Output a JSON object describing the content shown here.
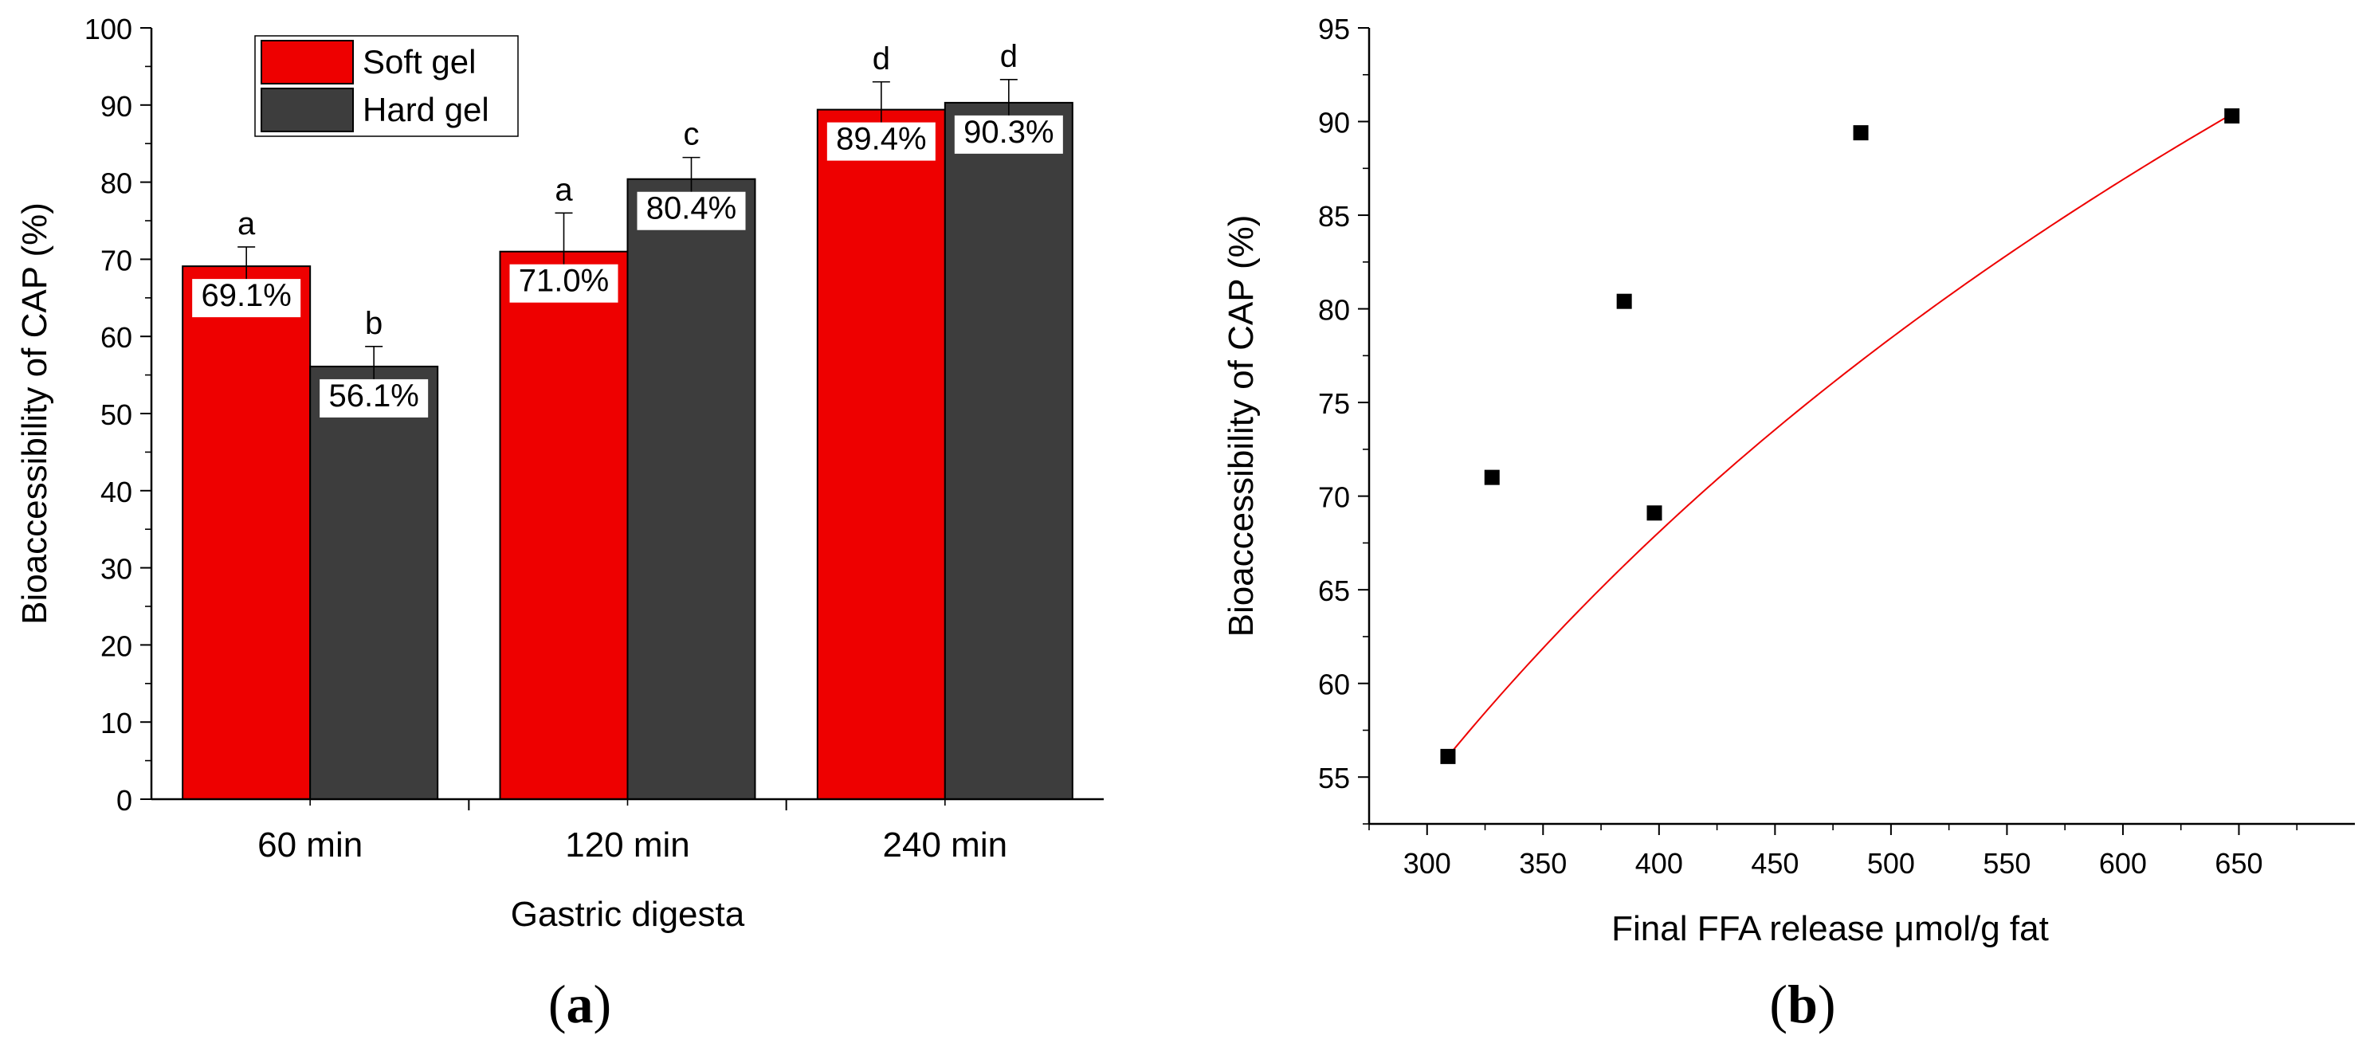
{
  "chart_data": [
    {
      "type": "bar",
      "panel_label": "a",
      "xlabel": "Gastric digesta",
      "ylabel": "Bioaccessibility of CAP (%)",
      "categories": [
        "60 min",
        "120 min",
        "240 min"
      ],
      "ylim": [
        0,
        100
      ],
      "yticks": [
        0,
        10,
        20,
        30,
        40,
        50,
        60,
        70,
        80,
        90,
        100
      ],
      "legend_position": "top-left",
      "series": [
        {
          "name": "Soft gel",
          "color": "#ee0000",
          "values": [
            69.1,
            71.0,
            89.4
          ],
          "errors": [
            2.5,
            5.0,
            3.6
          ],
          "value_labels": [
            "69.1%",
            "71.0%",
            "89.4%"
          ],
          "sig_letters": [
            "a",
            "a",
            "d"
          ]
        },
        {
          "name": "Hard gel",
          "color": "#3d3d3d",
          "values": [
            56.1,
            80.4,
            90.3
          ],
          "errors": [
            2.6,
            2.8,
            3.0
          ],
          "value_labels": [
            "56.1%",
            "80.4%",
            "90.3%"
          ],
          "sig_letters": [
            "b",
            "c",
            "d"
          ]
        }
      ]
    },
    {
      "type": "scatter",
      "panel_label": "b",
      "xlabel": "Final FFA release μmol/g fat",
      "ylabel": "Bioaccessibility of CAP (%)",
      "xlim": [
        275,
        700
      ],
      "ylim": [
        52.5,
        95
      ],
      "xticks": [
        300,
        350,
        400,
        450,
        500,
        550,
        600,
        650
      ],
      "yticks": [
        55,
        60,
        65,
        70,
        75,
        80,
        85,
        90,
        95
      ],
      "points": [
        {
          "x": 309,
          "y": 56.1
        },
        {
          "x": 328,
          "y": 71.0
        },
        {
          "x": 385,
          "y": 80.4
        },
        {
          "x": 398,
          "y": 69.1
        },
        {
          "x": 487,
          "y": 89.4
        },
        {
          "x": 647,
          "y": 90.3
        }
      ],
      "point_color": "#000000",
      "fit": {
        "type": "logarithmic",
        "color": "#ee0000",
        "x_range": [
          309,
          647
        ],
        "y_range": [
          56.1,
          90.4
        ]
      }
    }
  ]
}
